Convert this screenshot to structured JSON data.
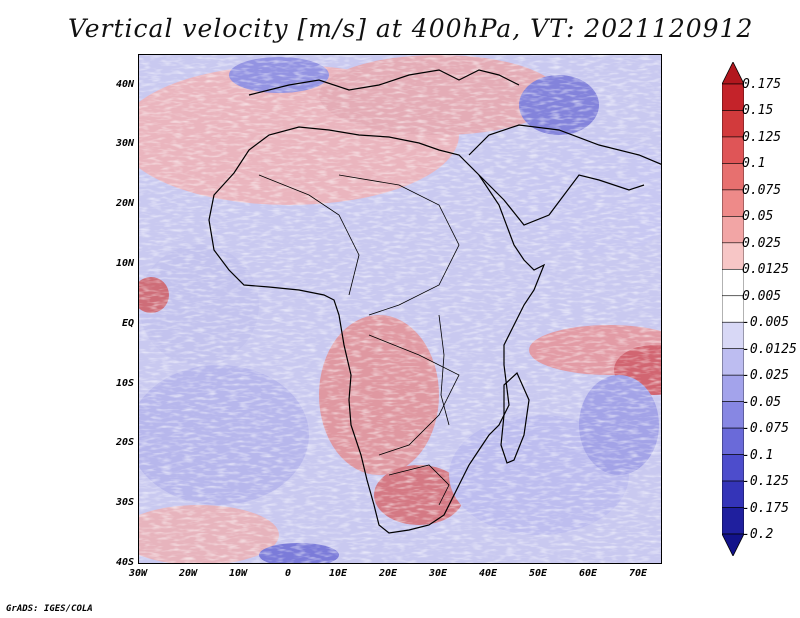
{
  "title": "Vertical velocity [m/s] at 400hPa, VT: 2021120912",
  "footer": "GrADS: IGES/COLA",
  "map": {
    "lat_labels": [
      "40N",
      "30N",
      "20N",
      "10N",
      "EQ",
      "10S",
      "20S",
      "30S",
      "40S"
    ],
    "lon_labels": [
      "30W",
      "20W",
      "10W",
      "0",
      "10E",
      "20E",
      "30E",
      "40E",
      "50E",
      "60E",
      "70E"
    ],
    "lat_range": [
      -40,
      45
    ],
    "lon_range": [
      -30,
      75
    ]
  },
  "colorbar": {
    "labels": [
      "0.175",
      "0.15",
      "0.125",
      "0.1",
      "0.075",
      "0.05",
      "0.025",
      "0.0125",
      "0.005",
      "-0.005",
      "-0.0125",
      "-0.025",
      "-0.05",
      "-0.075",
      "-0.1",
      "-0.125",
      "-0.175",
      "-0.2"
    ],
    "colors": [
      "#b2171e",
      "#c4232a",
      "#d23a3c",
      "#df5557",
      "#e7706f",
      "#ee8a89",
      "#f2a5a5",
      "#f7c6c6",
      "#ffffff",
      "#ffffff",
      "#d8d8f6",
      "#bdbdf1",
      "#a3a3eb",
      "#8787e3",
      "#6a6ad9",
      "#4d4dcc",
      "#3434b8",
      "#1f1f9e",
      "#12128a"
    ]
  }
}
